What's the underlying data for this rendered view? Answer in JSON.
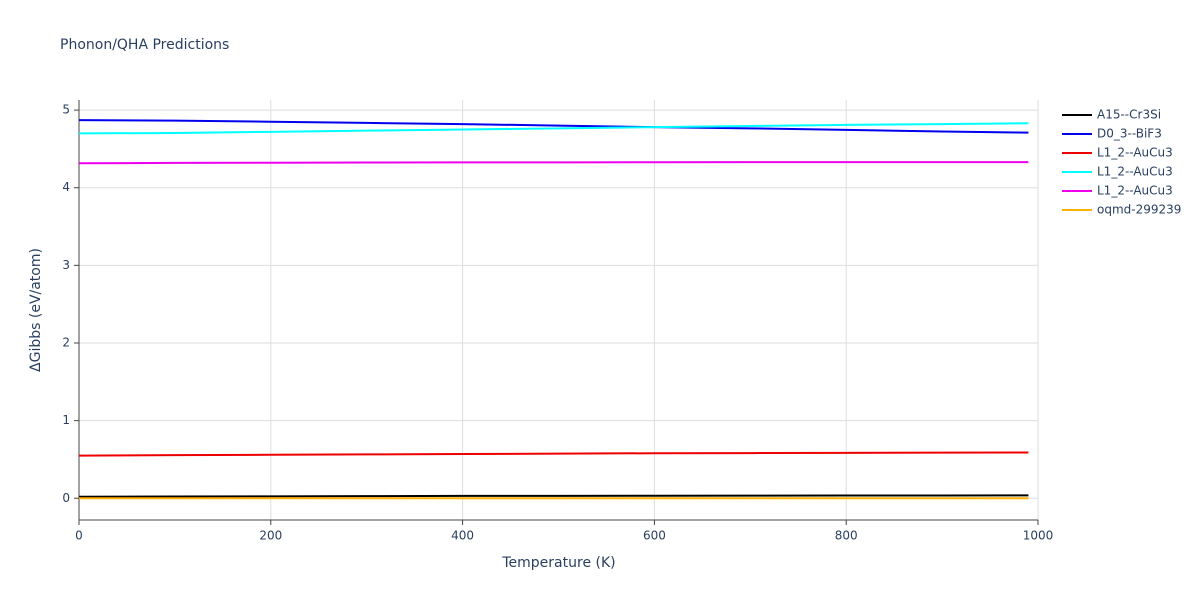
{
  "chart_data": {
    "type": "line",
    "title": "Phonon/QHA Predictions",
    "x_label": "Temperature (K)",
    "y_label": "ΔGibbs (eV/atom)",
    "x": [
      0,
      100,
      200,
      300,
      400,
      500,
      600,
      700,
      800,
      900,
      990
    ],
    "series": [
      {
        "name": "A15--Cr3Si",
        "color": "#000000",
        "values": [
          0.02,
          0.022,
          0.025,
          0.027,
          0.03,
          0.031,
          0.033,
          0.034,
          0.035,
          0.036,
          0.037
        ]
      },
      {
        "name": "D0_3--BiF3",
        "color": "#0000ee",
        "values": [
          4.87,
          4.865,
          4.85,
          4.835,
          4.82,
          4.8,
          4.78,
          4.765,
          4.745,
          4.725,
          4.71
        ]
      },
      {
        "name": "L1_2--AuCu3",
        "color": "#ee0000",
        "values": [
          0.55,
          0.555,
          0.56,
          0.565,
          0.57,
          0.575,
          0.58,
          0.582,
          0.585,
          0.588,
          0.59
        ]
      },
      {
        "name": "L1_2--AuCu3",
        "color": "#00ffff",
        "values": [
          4.7,
          4.705,
          4.72,
          4.735,
          4.75,
          4.765,
          4.78,
          4.795,
          4.81,
          4.82,
          4.83
        ]
      },
      {
        "name": "L1_2--AuCu3",
        "color": "#ee00ee",
        "values": [
          4.315,
          4.32,
          4.322,
          4.325,
          4.326,
          4.327,
          4.328,
          4.329,
          4.33,
          4.33,
          4.33
        ]
      },
      {
        "name": "oqmd-299239",
        "color": "#ffb000",
        "values": [
          0.0,
          0.0,
          0.0,
          0.0,
          0.0,
          0.0,
          0.0,
          0.0,
          0.0,
          0.0,
          0.0
        ]
      }
    ],
    "xlim": [
      0,
      1000
    ],
    "xticks": [
      0,
      200,
      400,
      600,
      800,
      1000
    ],
    "ylim": [
      -0.28,
      5.13
    ],
    "yticks": [
      0,
      1,
      2,
      3,
      4,
      5
    ],
    "grid": true,
    "legend": "right"
  }
}
